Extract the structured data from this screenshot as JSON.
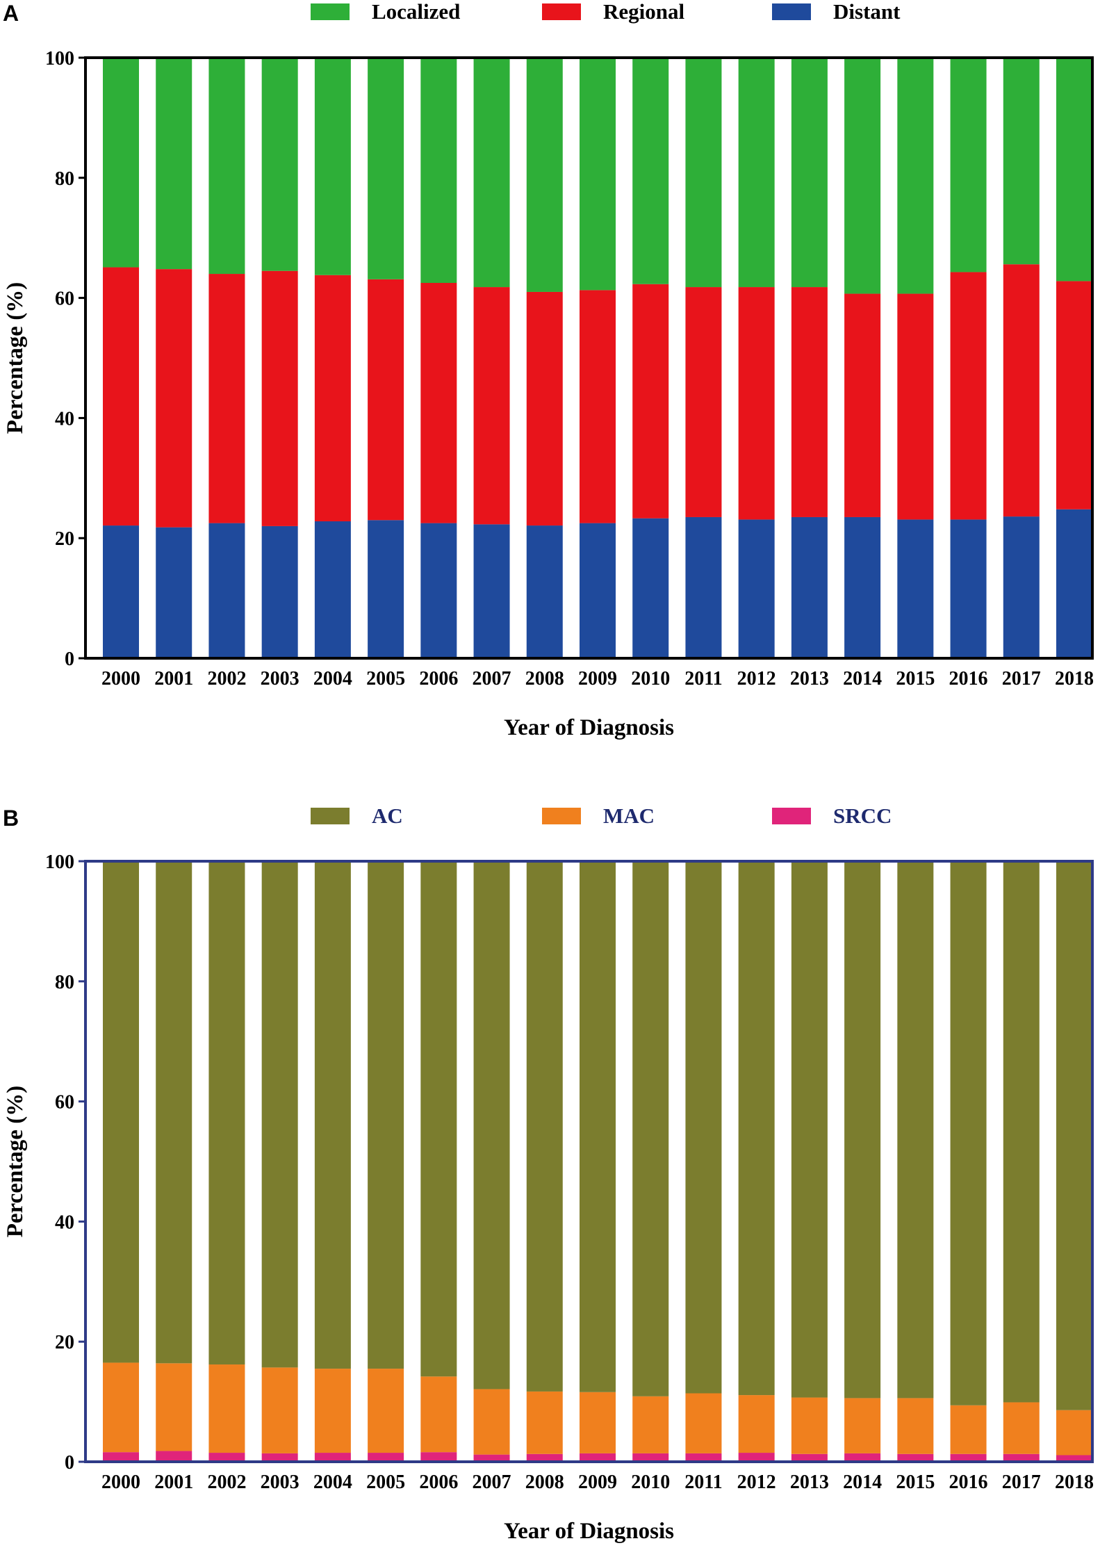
{
  "chart_data": [
    {
      "panel": "A",
      "type": "bar",
      "stacked": true,
      "categories": [
        "2000",
        "2001",
        "2002",
        "2003",
        "2004",
        "2005",
        "2006",
        "2007",
        "2008",
        "2009",
        "2010",
        "2011",
        "2012",
        "2013",
        "2014",
        "2015",
        "2016",
        "2017",
        "2018"
      ],
      "series": [
        {
          "name": "Distant",
          "color": "#1f4a9c",
          "values": [
            22.1,
            21.8,
            22.5,
            22.0,
            22.8,
            23.0,
            22.5,
            22.3,
            22.1,
            22.5,
            23.3,
            23.5,
            23.1,
            23.5,
            23.5,
            23.1,
            23.1,
            23.6,
            24.8
          ]
        },
        {
          "name": "Regional",
          "color": "#e8141b",
          "values": [
            43.0,
            43.0,
            41.5,
            42.5,
            41.0,
            40.1,
            40.0,
            39.5,
            38.9,
            38.8,
            39.0,
            38.3,
            38.7,
            38.3,
            37.2,
            37.6,
            41.2,
            42.0,
            38.0
          ]
        },
        {
          "name": "Localized",
          "color": "#2eaf38",
          "values": [
            34.9,
            35.2,
            36.0,
            35.5,
            36.2,
            36.9,
            37.5,
            38.2,
            39.0,
            38.7,
            37.7,
            38.2,
            38.2,
            38.2,
            39.3,
            39.3,
            35.7,
            34.4,
            37.2
          ]
        }
      ],
      "legend_order": [
        "Localized",
        "Regional",
        "Distant"
      ],
      "xlabel": "Year of Diagnosis",
      "ylabel": "Percentage (%)",
      "ylim": [
        0,
        100
      ],
      "yticks": [
        "0",
        "20",
        "40",
        "60",
        "80",
        "100"
      ],
      "legend_placement": "top-center",
      "frame_color": "#000000",
      "legend_text_color": "#000000"
    },
    {
      "panel": "B",
      "type": "bar",
      "stacked": true,
      "categories": [
        "2000",
        "2001",
        "2002",
        "2003",
        "2004",
        "2005",
        "2006",
        "2007",
        "2008",
        "2009",
        "2010",
        "2011",
        "2012",
        "2013",
        "2014",
        "2015",
        "2016",
        "2017",
        "2018"
      ],
      "series": [
        {
          "name": "SRCC",
          "color": "#e0247a",
          "values": [
            1.6,
            1.8,
            1.5,
            1.4,
            1.5,
            1.5,
            1.6,
            1.2,
            1.3,
            1.4,
            1.4,
            1.4,
            1.5,
            1.3,
            1.4,
            1.3,
            1.3,
            1.3,
            1.1
          ]
        },
        {
          "name": "MAC",
          "color": "#f0801e",
          "values": [
            14.9,
            14.6,
            14.7,
            14.3,
            14.0,
            14.0,
            12.6,
            10.9,
            10.4,
            10.2,
            9.5,
            10.0,
            9.6,
            9.4,
            9.2,
            9.3,
            8.1,
            8.6,
            7.5
          ]
        },
        {
          "name": "AC",
          "color": "#7b7d2e",
          "values": [
            83.5,
            83.6,
            83.8,
            84.3,
            84.5,
            84.5,
            85.8,
            87.9,
            88.3,
            88.4,
            89.1,
            88.6,
            88.9,
            89.3,
            89.4,
            89.4,
            90.6,
            90.1,
            91.4
          ]
        }
      ],
      "legend_order": [
        "AC",
        "MAC",
        "SRCC"
      ],
      "xlabel": "Year of Diagnosis",
      "ylabel": "Percentage (%)",
      "ylim": [
        0,
        100
      ],
      "yticks": [
        "0",
        "20",
        "40",
        "60",
        "80",
        "100"
      ],
      "legend_placement": "top-center",
      "frame_color": "#2e3a87",
      "legend_text_color": "#1e2a6e"
    }
  ]
}
